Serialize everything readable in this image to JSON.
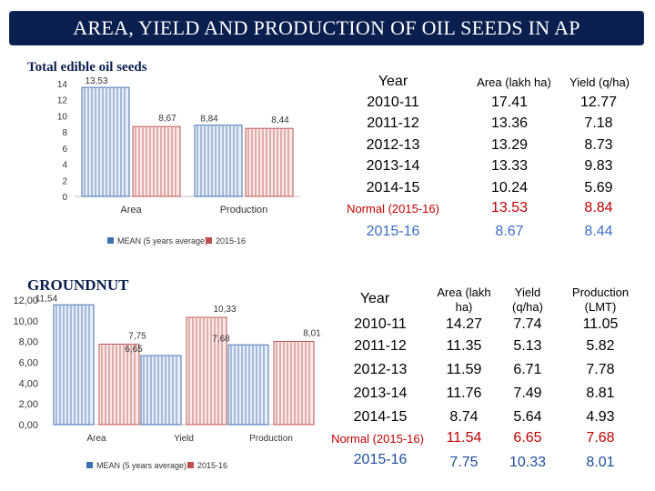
{
  "title": "AREA, YIELD AND PRODUCTION OF OIL SEEDS  IN AP",
  "colors": {
    "banner": "#0b1f4f",
    "mean_series": "#3f6fb3",
    "current_series": "#c0504d",
    "normal_text": "#c00000",
    "current_text": "#1f4e9c"
  },
  "chart_data": [
    {
      "id": "edible",
      "type": "bar",
      "title": "Total edible oil seeds",
      "categories": [
        "Area",
        "Production"
      ],
      "series": [
        {
          "name": "MEAN (5 years average)",
          "values": [
            13.53,
            8.84
          ]
        },
        {
          "name": "2015-16",
          "values": [
            8.67,
            8.44
          ]
        }
      ],
      "data_labels": [
        [
          "13,53",
          "8,84"
        ],
        [
          "8,67",
          "8,44"
        ]
      ],
      "yticks": [
        "0",
        "2",
        "4",
        "6",
        "8",
        "10",
        "12",
        "14"
      ],
      "ylim": [
        0,
        14
      ],
      "legend": [
        "MEAN (5 years average)",
        "2015-16"
      ],
      "legend_position": "bottom"
    },
    {
      "id": "groundnut",
      "type": "bar",
      "title": "GROUNDNUT",
      "categories": [
        "Area",
        "Yield",
        "Production"
      ],
      "series": [
        {
          "name": "MEAN (5 years average)",
          "values": [
            11.54,
            6.65,
            7.68
          ]
        },
        {
          "name": "2015-16",
          "values": [
            7.75,
            10.33,
            8.01
          ]
        }
      ],
      "data_labels": [
        [
          "11,54",
          "6,65",
          "7,68"
        ],
        [
          "7,75",
          "10,33",
          "8,01"
        ]
      ],
      "yticks": [
        "0,00",
        "2,00",
        "4,00",
        "6,00",
        "8,00",
        "10,00",
        "12,00"
      ],
      "ylim": [
        0,
        12
      ],
      "legend": [
        "MEAN (5 years average)",
        "2015-16"
      ],
      "legend_position": "bottom"
    }
  ],
  "table1": {
    "headers": [
      "Year",
      "Area (lakh ha)",
      "Yield (q/ha)"
    ],
    "rows": [
      {
        "year": "2010-11",
        "area": "17.41",
        "yield": "12.77"
      },
      {
        "year": "2011-12",
        "area": "13.36",
        "yield": "7.18"
      },
      {
        "year": "2012-13",
        "area": "13.29",
        "yield": "8.73"
      },
      {
        "year": "2013-14",
        "area": "13.33",
        "yield": "9.83"
      },
      {
        "year": "2014-15",
        "area": "10.24",
        "yield": "5.69"
      }
    ],
    "normal": {
      "year": "Normal (2015-16)",
      "area": "13.53",
      "yield": "8.84"
    },
    "current": {
      "year": "2015-16",
      "area": "8.67",
      "yield": "8.44"
    }
  },
  "table2": {
    "headers": [
      "Year",
      "Area (lakh ha)",
      "Yield (q/ha)",
      "Production (LMT)"
    ],
    "header_lines": [
      [
        "Year"
      ],
      [
        "Area (lakh",
        "ha)"
      ],
      [
        "Yield",
        "(q/ha)"
      ],
      [
        "Production",
        "(LMT)"
      ]
    ],
    "rows": [
      {
        "year": "2010-11",
        "area": "14.27",
        "yield": "7.74",
        "production": "11.05"
      },
      {
        "year": "2011-12",
        "area": "11.35",
        "yield": "5.13",
        "production": "5.82"
      },
      {
        "year": "2012-13",
        "area": "11.59",
        "yield": "6.71",
        "production": "7.78"
      },
      {
        "year": "2013-14",
        "area": "11.76",
        "yield": "7.49",
        "production": "8.81"
      },
      {
        "year": "2014-15",
        "area": "8.74",
        "yield": "5.64",
        "production": "4.93"
      }
    ],
    "normal": {
      "year": "Normal (2015-16)",
      "area": "11.54",
      "yield": "6.65",
      "production": "7.68"
    },
    "current": {
      "year": "2015-16",
      "area": "7.75",
      "yield": "10.33",
      "production": "8.01"
    }
  }
}
